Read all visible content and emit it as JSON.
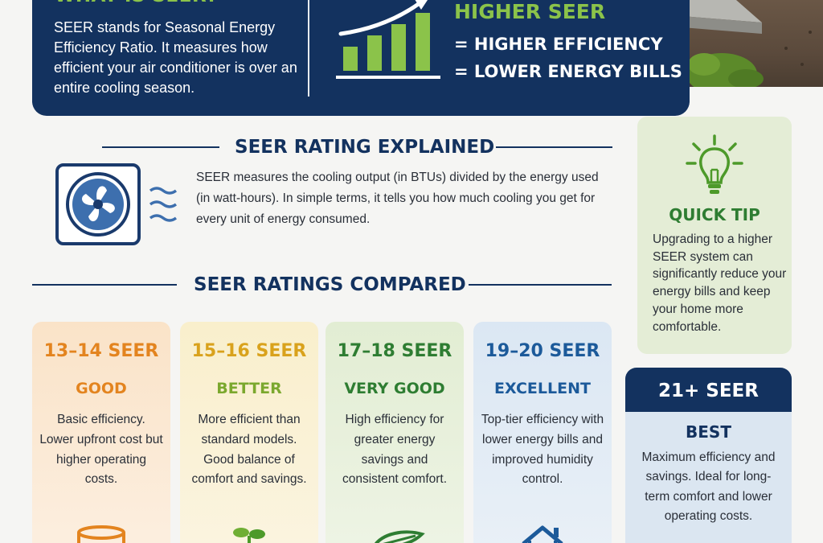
{
  "what_is_seer": {
    "title": "WHAT IS SEER?",
    "text": "SEER stands for Seasonal Energy Efficiency Ratio. It measures how efficient your air conditioner is over an entire cooling season."
  },
  "higher_seer": {
    "title": "HIGHER SEER",
    "line1": "= HIGHER EFFICIENCY",
    "line2": "= LOWER ENERGY BILLS"
  },
  "explained": {
    "heading": "SEER RATING EXPLAINED",
    "text": "SEER measures the cooling output (in BTUs) divided by the energy used (in watt-hours). In simple terms, it tells you how much cooling you get for every unit of energy consumed."
  },
  "quick_tip": {
    "title": "QUICK TIP",
    "text": "Upgrading to a higher SEER system can significantly reduce your energy bills and keep your home more comfortable."
  },
  "compared": {
    "heading": "SEER RATINGS COMPARED"
  },
  "ratings": [
    {
      "range": "13–14 SEER",
      "label": "GOOD",
      "desc": "Basic efficiency. Lower upfront cost but higher operating costs.",
      "icon": "coins-icon"
    },
    {
      "range": "15–16 SEER",
      "label": "BETTER",
      "desc": "More efficient than standard models. Good balance of comfort and savings.",
      "icon": "plant-icon"
    },
    {
      "range": "17–18 SEER",
      "label": "VERY GOOD",
      "desc": "High efficiency for greater energy savings and consistent comfort.",
      "icon": "leaf-icon"
    },
    {
      "range": "19–20 SEER",
      "label": "EXCELLENT",
      "desc": "Top-tier efficiency with lower energy bills and improved humidity control.",
      "icon": "house-icon"
    }
  ],
  "best": {
    "range": "21+ SEER",
    "label": "BEST",
    "desc": "Maximum efficiency and savings. Ideal for long-term comfort and lower operating costs."
  },
  "colors": {
    "navy": "#13325f",
    "green": "#8bc34a",
    "dark_green": "#2e7d32",
    "orange": "#e3841f",
    "gold": "#d9a21c",
    "blue": "#1c5a9a"
  }
}
